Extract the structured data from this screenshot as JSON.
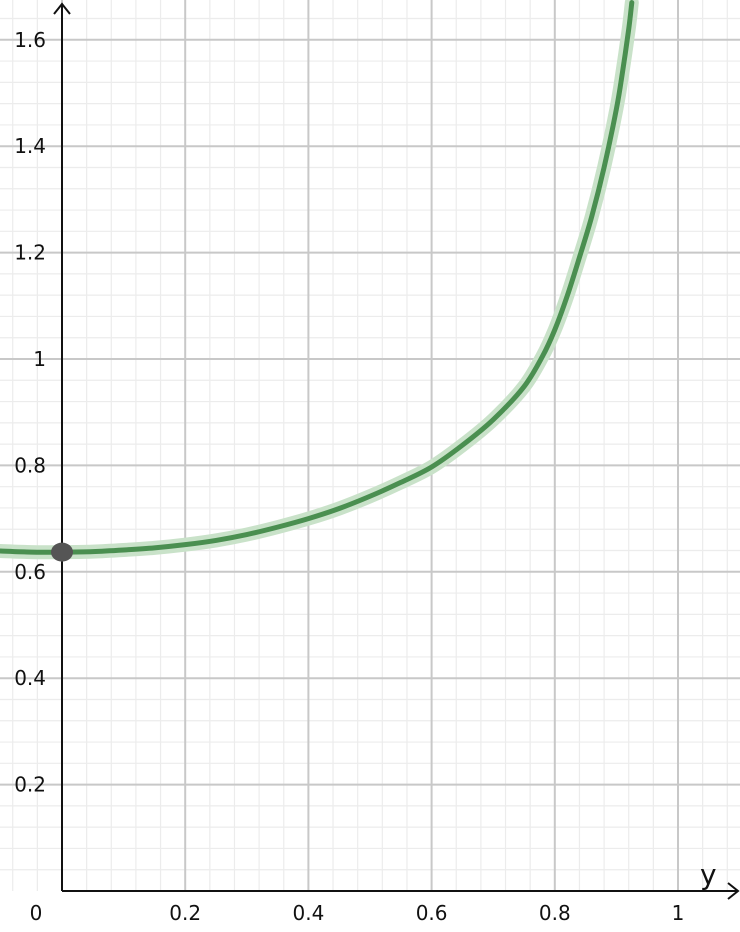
{
  "chart_data": {
    "type": "line",
    "title": "",
    "xlabel": "y",
    "ylabel": "",
    "xlim": [
      -0.1,
      1.1
    ],
    "ylim": [
      0,
      1.66
    ],
    "grid": true,
    "x_ticks": [
      {
        "value": 0,
        "label": "0"
      },
      {
        "value": 0.2,
        "label": "0.2"
      },
      {
        "value": 0.4,
        "label": "0.4"
      },
      {
        "value": 0.6,
        "label": "0.6"
      },
      {
        "value": 0.8,
        "label": "0.8"
      },
      {
        "value": 1,
        "label": "1"
      }
    ],
    "y_ticks": [
      {
        "value": 0.2,
        "label": "0.2"
      },
      {
        "value": 0.4,
        "label": "0.4"
      },
      {
        "value": 0.6,
        "label": "0.6"
      },
      {
        "value": 0.8,
        "label": "0.8"
      },
      {
        "value": 1,
        "label": "1"
      },
      {
        "value": 1.2,
        "label": "1.2"
      },
      {
        "value": 1.4,
        "label": "1.4"
      },
      {
        "value": 1.6,
        "label": "1.6"
      }
    ],
    "series": [
      {
        "color": "#4a8f50",
        "halo_color": "#c9e2c9",
        "x": [
          -0.1,
          -0.05,
          0,
          0.05,
          0.1,
          0.15,
          0.2,
          0.25,
          0.3,
          0.35,
          0.4,
          0.45,
          0.5,
          0.55,
          0.6,
          0.65,
          0.7,
          0.75,
          0.78,
          0.8,
          0.82,
          0.84,
          0.86,
          0.88,
          0.9,
          0.91,
          0.92,
          0.925
        ],
        "y": [
          0.639,
          0.637,
          0.637,
          0.638,
          0.641,
          0.645,
          0.651,
          0.659,
          0.67,
          0.684,
          0.7,
          0.719,
          0.742,
          0.768,
          0.797,
          0.838,
          0.886,
          0.948,
          1.005,
          1.055,
          1.118,
          1.191,
          1.268,
          1.36,
          1.47,
          1.54,
          1.62,
          1.67
        ]
      }
    ],
    "points": [
      {
        "x": 0,
        "y": 0.637,
        "color": "#555555"
      }
    ]
  }
}
